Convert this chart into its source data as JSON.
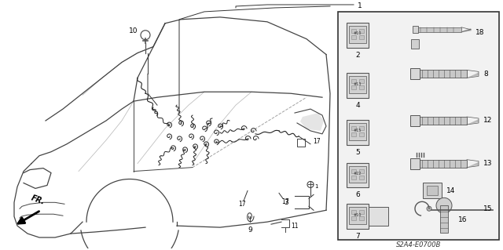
{
  "bg_color": "#ffffff",
  "car_color": "#444444",
  "harness_color": "#222222",
  "line_color": "#333333",
  "panel_bg": "#f0f0f0",
  "label_fontsize": 6.5,
  "code": "S2A4-E0700B",
  "lw_car": 0.9,
  "lw_part": 0.7
}
